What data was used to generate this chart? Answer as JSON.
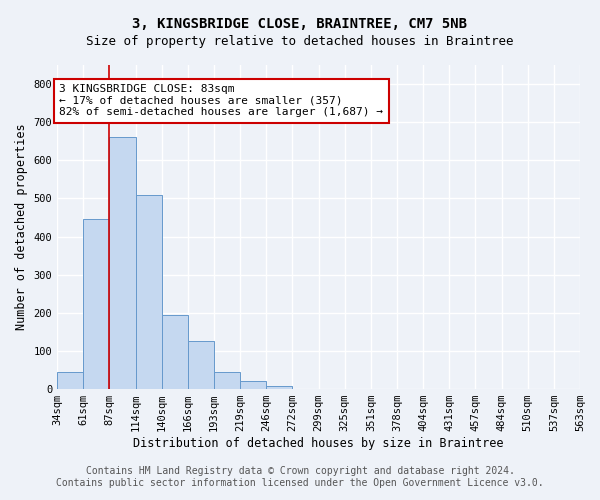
{
  "title": "3, KINGSBRIDGE CLOSE, BRAINTREE, CM7 5NB",
  "subtitle": "Size of property relative to detached houses in Braintree",
  "xlabel": "Distribution of detached houses by size in Braintree",
  "ylabel": "Number of detached properties",
  "bar_values": [
    45,
    445,
    660,
    510,
    195,
    125,
    45,
    20,
    8,
    0,
    0,
    0,
    0,
    0,
    0,
    0,
    0,
    0,
    0,
    0
  ],
  "bar_labels": [
    "34sqm",
    "61sqm",
    "87sqm",
    "114sqm",
    "140sqm",
    "166sqm",
    "193sqm",
    "219sqm",
    "246sqm",
    "272sqm",
    "299sqm",
    "325sqm",
    "351sqm",
    "378sqm",
    "404sqm",
    "431sqm",
    "457sqm",
    "484sqm",
    "510sqm",
    "537sqm",
    "563sqm"
  ],
  "bar_color": "#c5d8f0",
  "bar_edge_color": "#6699cc",
  "vline_x": 2.0,
  "vline_color": "#cc0000",
  "vline_linewidth": 1.2,
  "annotation_text": "3 KINGSBRIDGE CLOSE: 83sqm\n← 17% of detached houses are smaller (357)\n82% of semi-detached houses are larger (1,687) →",
  "annotation_box_color": "#ffffff",
  "annotation_box_edge_color": "#cc0000",
  "ylim": [
    0,
    850
  ],
  "yticks": [
    0,
    100,
    200,
    300,
    400,
    500,
    600,
    700,
    800
  ],
  "footer_line1": "Contains HM Land Registry data © Crown copyright and database right 2024.",
  "footer_line2": "Contains public sector information licensed under the Open Government Licence v3.0.",
  "bg_color": "#eef2f8",
  "grid_color": "#ffffff",
  "title_fontsize": 10,
  "subtitle_fontsize": 9,
  "axis_label_fontsize": 8.5,
  "tick_fontsize": 7.5,
  "annotation_fontsize": 8,
  "footer_fontsize": 7
}
